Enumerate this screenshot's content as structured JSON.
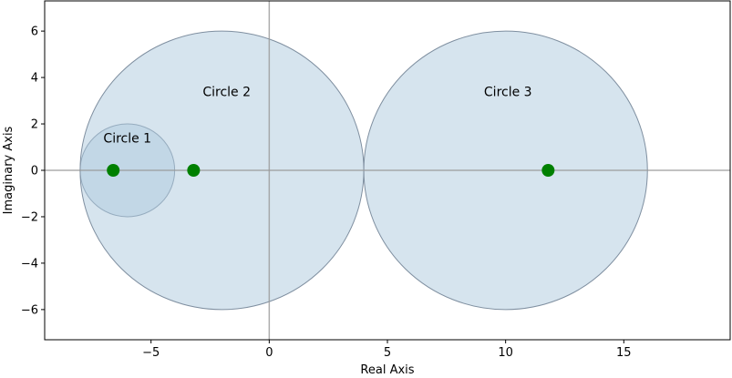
{
  "chart_data": {
    "type": "scatter",
    "xlabel": "Real Axis",
    "ylabel": "Imaginary Axis",
    "xlim": [
      -9.5,
      19.5
    ],
    "ylim": [
      -7.3,
      7.3
    ],
    "xticks": [
      -5,
      0,
      5,
      10,
      15
    ],
    "yticks": [
      -6,
      -4,
      -2,
      0,
      2,
      4,
      6
    ],
    "xtick_labels": [
      "−5",
      "0",
      "5",
      "10",
      "15"
    ],
    "ytick_labels": [
      "−6",
      "−4",
      "−2",
      "0",
      "2",
      "4",
      "6"
    ],
    "grid": false,
    "reference_lines": {
      "x": 0,
      "y": 0
    },
    "circles": [
      {
        "label": "Circle 1",
        "center": [
          -6,
          0
        ],
        "radius": 2,
        "label_pos": [
          -6,
          1.2
        ]
      },
      {
        "label": "Circle 2",
        "center": [
          -2,
          0
        ],
        "radius": 6,
        "label_pos": [
          -1.8,
          3.2
        ]
      },
      {
        "label": "Circle 3",
        "center": [
          10,
          0
        ],
        "radius": 6,
        "label_pos": [
          10.1,
          3.2
        ]
      }
    ],
    "points": [
      {
        "x": -6.6,
        "y": 0
      },
      {
        "x": -3.2,
        "y": 0
      },
      {
        "x": 11.8,
        "y": 0
      }
    ],
    "colors": {
      "circle_fill": "#adc9de",
      "circle_edge": "#7f8fa0",
      "point": "#008000",
      "reference_line": "#999999"
    }
  }
}
